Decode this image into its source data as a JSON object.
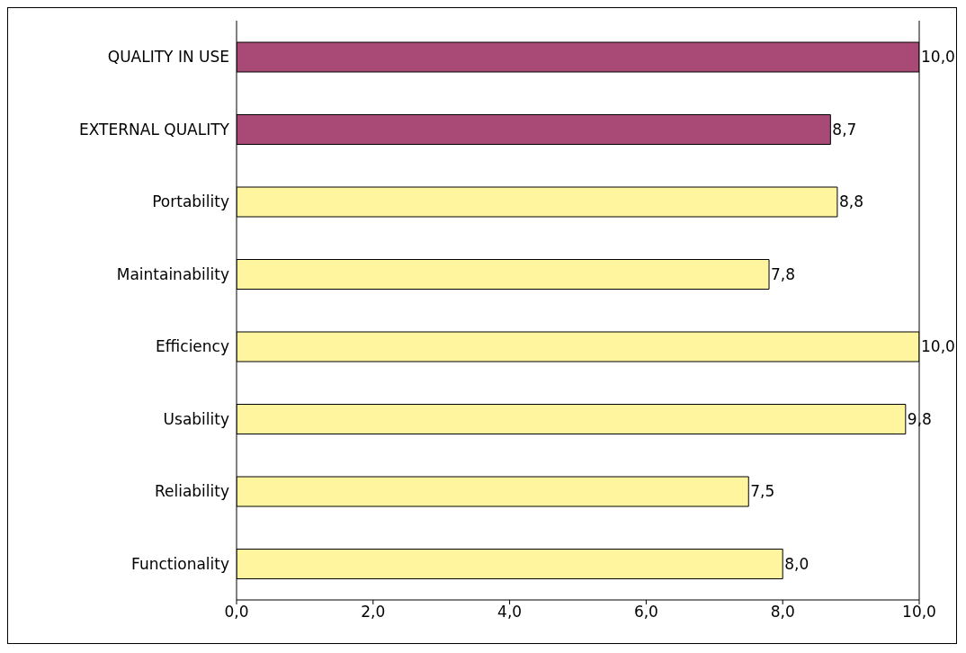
{
  "chart_data": {
    "type": "bar",
    "orientation": "horizontal",
    "categories": [
      "QUALITY IN USE",
      "EXTERNAL QUALITY",
      "Portability",
      "Maintainability",
      "Efficiency",
      "Usability",
      "Reliability",
      "Functionality"
    ],
    "values": [
      10.0,
      8.7,
      8.8,
      7.8,
      10.0,
      9.8,
      7.5,
      8.0
    ],
    "colors": [
      "#a94a76",
      "#a94a76",
      "#fff59f",
      "#fff59f",
      "#fff59f",
      "#fff59f",
      "#fff59f",
      "#fff59f"
    ],
    "value_labels": [
      "10,0",
      "8,7",
      "8,8",
      "7,8",
      "10,0",
      "9,8",
      "7,5",
      "8,0"
    ],
    "xlim": [
      0,
      10
    ],
    "xticks": [
      {
        "value": 0,
        "label": "0,0"
      },
      {
        "value": 2,
        "label": "2,0"
      },
      {
        "value": 4,
        "label": "4,0"
      },
      {
        "value": 6,
        "label": "6,0"
      },
      {
        "value": 8,
        "label": "8,0"
      },
      {
        "value": 10,
        "label": "10,0"
      }
    ],
    "grid": false
  }
}
